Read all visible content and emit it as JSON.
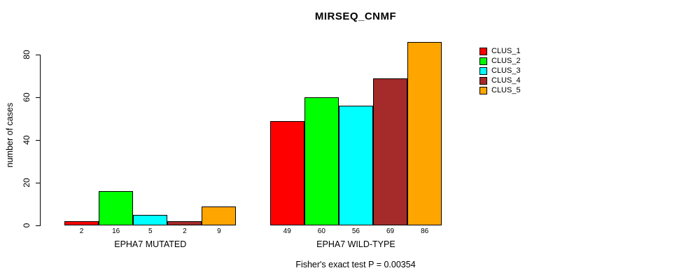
{
  "chart_data": {
    "type": "bar",
    "title": "MIRSEQ_CNMF",
    "ylabel": "number of cases",
    "xlabel": "",
    "ylim": [
      0,
      86
    ],
    "y_ticks": [
      0,
      20,
      40,
      60,
      80
    ],
    "grid": false,
    "legend_position": "right",
    "bar_value_labels_shown": true,
    "categories": [
      "EPHA7 MUTATED",
      "EPHA7 WILD-TYPE"
    ],
    "series": [
      {
        "name": "CLUS_1",
        "color": "#FF0000",
        "values": [
          2,
          49
        ]
      },
      {
        "name": "CLUS_2",
        "color": "#00FF00",
        "values": [
          16,
          60
        ]
      },
      {
        "name": "CLUS_3",
        "color": "#00FFFF",
        "values": [
          5,
          56
        ]
      },
      {
        "name": "CLUS_4",
        "color": "#A52A2A",
        "values": [
          2,
          69
        ]
      },
      {
        "name": "CLUS_5",
        "color": "#FFA500",
        "values": [
          9,
          86
        ]
      }
    ],
    "annotation": "Fisher's exact test P = 0.00354"
  }
}
